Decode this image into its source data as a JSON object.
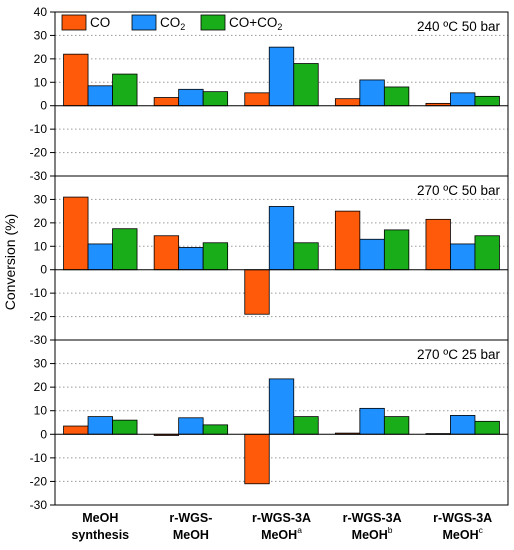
{
  "chart_data": {
    "type": "bar",
    "ylabel": "Conversion (%)",
    "ylim": [
      -30,
      40
    ],
    "yticks": [
      -30,
      -20,
      -10,
      0,
      10,
      20,
      30,
      40
    ],
    "grid": "horizontal dotted",
    "categories": [
      [
        "MeOH",
        "synthesis"
      ],
      [
        "r-WGS-",
        "MeOH"
      ],
      [
        "r-WGS-3A",
        "MeOH",
        "a"
      ],
      [
        "r-WGS-3A",
        "MeOH",
        "b"
      ],
      [
        "r-WGS-3A",
        "MeOH",
        "c"
      ]
    ],
    "legend": {
      "placement": "top-left",
      "entries": [
        {
          "label": "CO",
          "sub": "",
          "after": ""
        },
        {
          "label": "CO",
          "sub": "2",
          "after": ""
        },
        {
          "label": "CO+CO",
          "sub": "2",
          "after": ""
        }
      ]
    },
    "series_colors": [
      "#ff5a0a",
      "#1e90ff",
      "#1aad1a"
    ],
    "panels": [
      {
        "condition": "240 ºC 50 bar",
        "series": [
          {
            "name": "CO",
            "values": [
              22,
              3.5,
              5.5,
              3,
              1
            ]
          },
          {
            "name": "CO2",
            "values": [
              8.5,
              7,
              25,
              11,
              5.5
            ]
          },
          {
            "name": "CO+CO2",
            "values": [
              13.5,
              6,
              18,
              8,
              4
            ]
          }
        ]
      },
      {
        "condition": "270 ºC 50 bar",
        "series": [
          {
            "name": "CO",
            "values": [
              31,
              14.5,
              -19,
              25,
              21.5
            ]
          },
          {
            "name": "CO2",
            "values": [
              11,
              9.5,
              27,
              13,
              11
            ]
          },
          {
            "name": "CO+CO2",
            "values": [
              17.5,
              11.5,
              11.5,
              17,
              14.5
            ]
          }
        ]
      },
      {
        "condition": "270 ºC 25 bar",
        "series": [
          {
            "name": "CO",
            "values": [
              3.5,
              -0.5,
              -21,
              0.5,
              0.3
            ]
          },
          {
            "name": "CO2",
            "values": [
              7.5,
              7,
              23.5,
              11,
              8
            ]
          },
          {
            "name": "CO+CO2",
            "values": [
              6,
              4,
              7.5,
              7.5,
              5.5
            ]
          }
        ]
      }
    ]
  }
}
